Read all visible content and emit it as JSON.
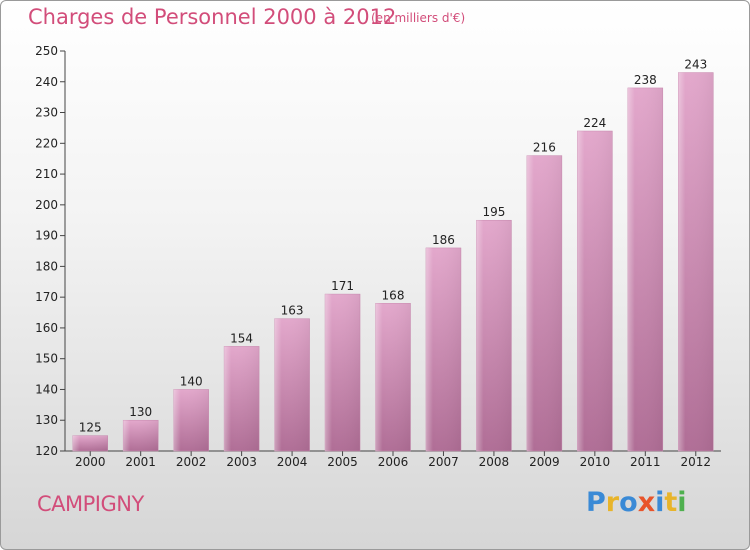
{
  "header": {
    "title": "Charges de Personnel 2000 à 2012",
    "subtitle": "(en milliers d'€)"
  },
  "footer": {
    "city": "CAMPIGNY",
    "logo_text": "Proxiti"
  },
  "colors": {
    "accent": "#d24d7a",
    "bar_top": "#e3a8cc",
    "bar_bottom": "#b06e96",
    "logo_letters": [
      "#3a8ad6",
      "#e8b42a",
      "#3a8ad6",
      "#e8542a",
      "#3a8ad6",
      "#e8b42a",
      "#4fb04f"
    ]
  },
  "chart_data": {
    "type": "bar",
    "categories": [
      "2000",
      "2001",
      "2002",
      "2003",
      "2004",
      "2005",
      "2006",
      "2007",
      "2008",
      "2009",
      "2010",
      "2011",
      "2012"
    ],
    "values": [
      125,
      130,
      140,
      154,
      163,
      171,
      168,
      186,
      195,
      216,
      224,
      238,
      243
    ],
    "ylim": [
      120,
      250
    ],
    "yticks": [
      120,
      130,
      140,
      150,
      160,
      170,
      180,
      190,
      200,
      210,
      220,
      230,
      240,
      250
    ],
    "grid": false,
    "data_labels": true
  }
}
